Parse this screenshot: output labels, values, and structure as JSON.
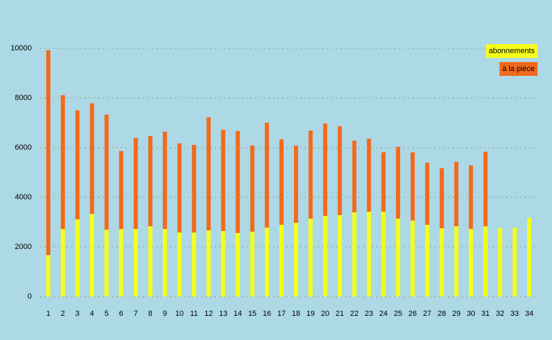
{
  "chart_data": {
    "type": "stacked-bar",
    "categories": [
      "1",
      "2",
      "3",
      "4",
      "5",
      "6",
      "7",
      "8",
      "9",
      "10",
      "11",
      "12",
      "13",
      "14",
      "15",
      "16",
      "17",
      "18",
      "19",
      "20",
      "21",
      "22",
      "23",
      "24",
      "25",
      "26",
      "27",
      "28",
      "29",
      "30",
      "31",
      "32",
      "33",
      "34"
    ],
    "series": [
      {
        "name": "abonnements",
        "color": "#f5ff1a",
        "values": [
          1670,
          2720,
          3110,
          3330,
          2690,
          2720,
          2720,
          2830,
          2720,
          2580,
          2580,
          2670,
          2640,
          2560,
          2610,
          2780,
          2890,
          2970,
          3140,
          3250,
          3280,
          3390,
          3420,
          3420,
          3140,
          3060,
          2890,
          2750,
          2830,
          2720,
          2830,
          2750,
          2780,
          3170
        ]
      },
      {
        "name": "à la pièce",
        "color": "#f26a1b",
        "values": [
          8250,
          5390,
          4390,
          4450,
          4640,
          3140,
          3670,
          3640,
          3920,
          3590,
          3530,
          4550,
          4080,
          4110,
          3470,
          4220,
          3440,
          3110,
          3550,
          3720,
          3580,
          2890,
          2940,
          2390,
          2890,
          2750,
          2500,
          2420,
          2590,
          2560,
          3000,
          null,
          null,
          null
        ]
      }
    ],
    "ylim": [
      0,
      10000
    ],
    "yticks": [
      0,
      2000,
      4000,
      6000,
      8000,
      10000
    ],
    "grid": true,
    "legend": "top-right"
  }
}
